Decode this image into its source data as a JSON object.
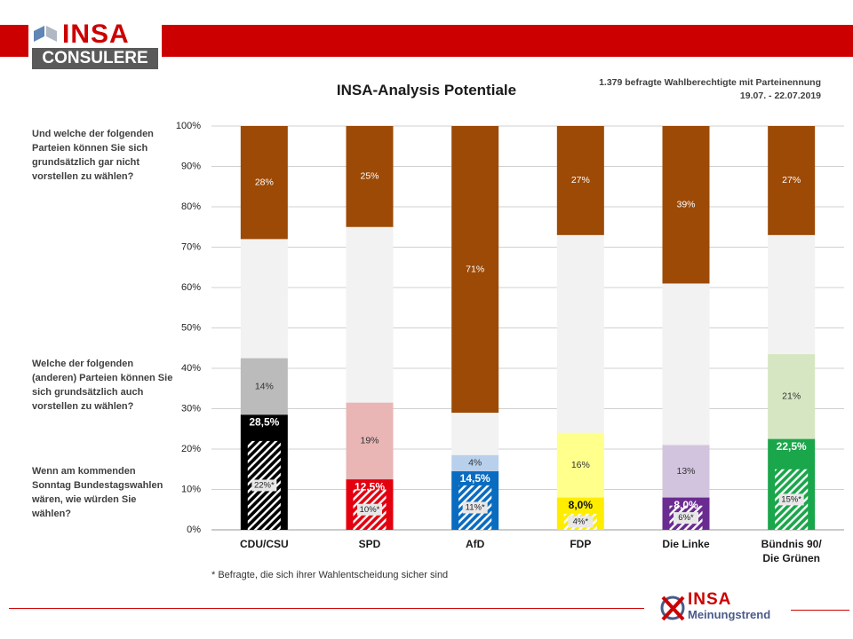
{
  "header": {
    "logo_brand": "INSA",
    "logo_sub": "CONSULERE"
  },
  "sample": {
    "line1": "1.379 befragte Wahlberechtigte mit Parteinennung",
    "line2": "19.07. - 22.07.2019"
  },
  "questions": {
    "q1": "Und welche der folgenden Parteien können Sie sich grundsätzlich  gar nicht vorstellen zu wählen?",
    "q2": "Welche der folgenden (anderen) Parteien können Sie sich grundsätzlich auch vorstellen zu wählen?",
    "q3": "Wenn am kommenden Sonntag Bundestagswahlen wären, wie würden Sie wählen?"
  },
  "footnote": "* Befragte, die sich ihrer Wahlentscheidung sicher sind",
  "footer": {
    "brand": "INSA",
    "sub": "Meinungstrend"
  },
  "chart_data": {
    "type": "bar",
    "stacked": true,
    "title": "INSA-Analysis Potentiale",
    "ylim": [
      0,
      100
    ],
    "y_ticks": [
      "0%",
      "10%",
      "20%",
      "30%",
      "40%",
      "50%",
      "60%",
      "70%",
      "80%",
      "90%",
      "100%"
    ],
    "grid": true,
    "categories": [
      [
        "CDU/CSU"
      ],
      [
        "SPD"
      ],
      [
        "AfD"
      ],
      [
        "FDP"
      ],
      [
        "Die Linke"
      ],
      [
        "Bündnis 90/",
        "Die Grünen"
      ]
    ],
    "party_colors": [
      "#000000",
      "#e3000f",
      "#0a6cc0",
      "#ffed00",
      "#6a2c91",
      "#1aa64a"
    ],
    "potential_colors": [
      "#bbbbbb",
      "#e9b5b5",
      "#b8d0ec",
      "#ffff8c",
      "#d2c4de",
      "#d6e6c2"
    ],
    "rest_color": "#f2f2f2",
    "rejection_color": "#9c4a06",
    "vote_share": [
      28.5,
      12.5,
      14.5,
      8.0,
      8.0,
      22.5
    ],
    "vote_share_labels": [
      "28,5%",
      "12,5%",
      "14,5%",
      "8,0%",
      "8,0%",
      "22,5%"
    ],
    "certain_voters": [
      22,
      10,
      11,
      4,
      6,
      15
    ],
    "certain_voters_labels": [
      "22%*",
      "10%*",
      "11%*",
      "4%*",
      "6%*",
      "15%*"
    ],
    "additional_potential": [
      14,
      19,
      4,
      16,
      13,
      21
    ],
    "additional_potential_labels": [
      "14%",
      "19%",
      "4%",
      "16%",
      "13%",
      "21%"
    ],
    "rejection": [
      28,
      25,
      71,
      27,
      39,
      27
    ],
    "rejection_labels": [
      "28%",
      "25%",
      "71%",
      "27%",
      "39%",
      "27%"
    ]
  }
}
